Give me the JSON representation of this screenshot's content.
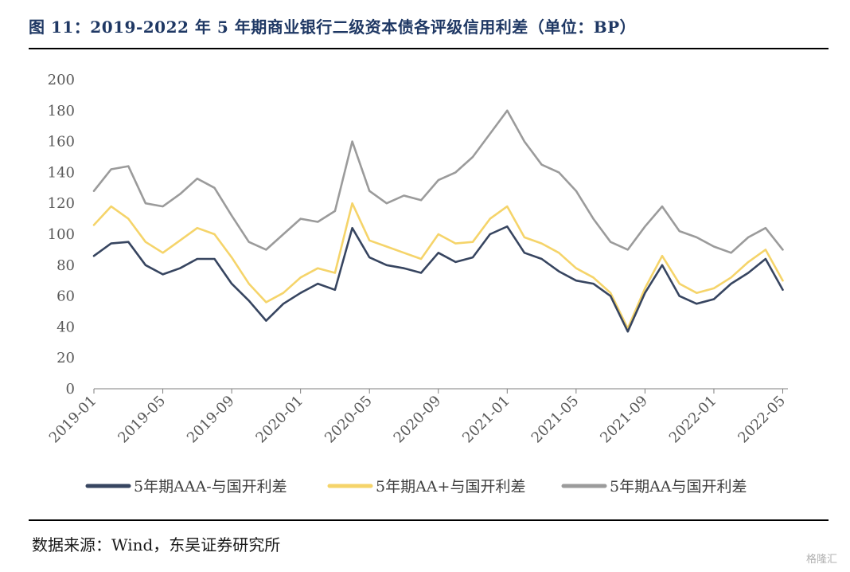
{
  "title": "图 11：2019-2022 年 5 年期商业银行二级资本债各评级信用利差（单位：BP）",
  "source": "数据来源：Wind，东吴证券研究所",
  "watermark": "格隆汇",
  "chart_data": {
    "type": "line",
    "title": "图 11：2019-2022 年 5 年期商业银行二级资本债各评级信用利差（单位：BP）",
    "xlabel": "",
    "ylabel": "",
    "ylim": [
      0,
      200
    ],
    "yticks": [
      0,
      20,
      40,
      60,
      80,
      100,
      120,
      140,
      160,
      180,
      200
    ],
    "xlim": [
      "2019-01",
      "2022-05"
    ],
    "xtick_labels": [
      "2019-01",
      "2019-05",
      "2019-09",
      "2020-01",
      "2020-05",
      "2020-09",
      "2021-01",
      "2021-05",
      "2021-09",
      "2022-01",
      "2022-05"
    ],
    "grid": false,
    "legend_position": "bottom",
    "x": [
      "2019-01",
      "2019-02",
      "2019-03",
      "2019-04",
      "2019-05",
      "2019-06",
      "2019-07",
      "2019-08",
      "2019-09",
      "2019-10",
      "2019-11",
      "2019-12",
      "2020-01",
      "2020-02",
      "2020-03",
      "2020-04",
      "2020-05",
      "2020-06",
      "2020-07",
      "2020-08",
      "2020-09",
      "2020-10",
      "2020-11",
      "2020-12",
      "2021-01",
      "2021-02",
      "2021-03",
      "2021-04",
      "2021-05",
      "2021-06",
      "2021-07",
      "2021-08",
      "2021-09",
      "2021-10",
      "2021-11",
      "2021-12",
      "2022-01",
      "2022-02",
      "2022-03",
      "2022-04",
      "2022-05"
    ],
    "series": [
      {
        "name": "5年期AAA-与国开利差",
        "color": "#374560",
        "values": [
          86,
          94,
          95,
          80,
          74,
          78,
          84,
          84,
          68,
          57,
          44,
          55,
          62,
          68,
          64,
          104,
          85,
          80,
          78,
          75,
          88,
          82,
          85,
          100,
          105,
          88,
          84,
          76,
          70,
          68,
          60,
          37,
          62,
          80,
          60,
          55,
          58,
          68,
          75,
          84,
          64
        ]
      },
      {
        "name": "5年期AA+与国开利差",
        "color": "#f5d46a",
        "values": [
          106,
          118,
          110,
          95,
          88,
          96,
          104,
          100,
          85,
          68,
          56,
          62,
          72,
          78,
          75,
          120,
          96,
          92,
          88,
          84,
          100,
          94,
          95,
          110,
          118,
          98,
          94,
          88,
          78,
          72,
          62,
          39,
          65,
          86,
          68,
          62,
          65,
          72,
          82,
          90,
          70
        ]
      },
      {
        "name": "5年期AA与国开利差",
        "color": "#9b9b9b",
        "values": [
          128,
          142,
          144,
          120,
          118,
          126,
          136,
          130,
          112,
          95,
          90,
          100,
          110,
          108,
          115,
          160,
          128,
          120,
          125,
          122,
          135,
          140,
          150,
          165,
          180,
          160,
          145,
          140,
          128,
          110,
          95,
          90,
          105,
          118,
          102,
          98,
          92,
          88,
          98,
          104,
          90
        ]
      }
    ]
  }
}
